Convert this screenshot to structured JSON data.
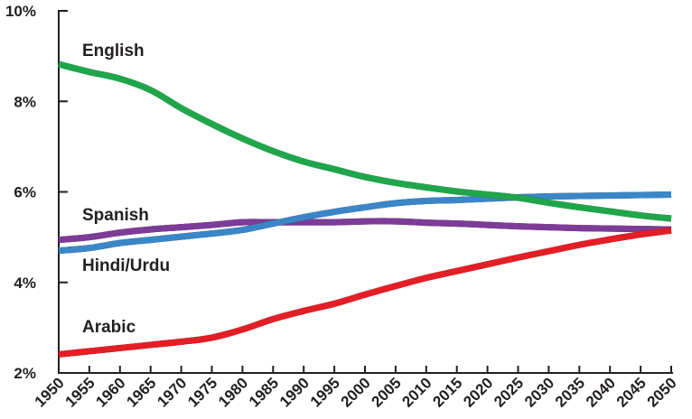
{
  "chart_data": {
    "type": "line",
    "x": [
      1950,
      1955,
      1960,
      1965,
      1970,
      1975,
      1980,
      1985,
      1990,
      1995,
      2000,
      2005,
      2010,
      2015,
      2020,
      2025,
      2030,
      2035,
      2040,
      2045,
      2050
    ],
    "x_tick_labels": [
      "1950",
      "1955",
      "1960",
      "1965",
      "1970",
      "1975",
      "1980",
      "1985",
      "1990",
      "1995",
      "2000",
      "2005",
      "2010",
      "2015",
      "2020",
      "2025",
      "2030",
      "2035",
      "2040",
      "2045",
      "2050"
    ],
    "y_ticks": [
      2,
      4,
      6,
      8,
      10
    ],
    "y_tick_labels": [
      "2%",
      "4%",
      "6%",
      "8%",
      "10%"
    ],
    "ylim": [
      2,
      10
    ],
    "xlim": [
      1950,
      2050
    ],
    "grid": false,
    "legend": "inline labels",
    "series": [
      {
        "name": "English",
        "color": "#1fa64b",
        "values": [
          8.82,
          8.65,
          8.5,
          8.25,
          7.85,
          7.5,
          7.18,
          6.9,
          6.67,
          6.5,
          6.33,
          6.2,
          6.1,
          6.01,
          5.94,
          5.87,
          5.76,
          5.66,
          5.57,
          5.48,
          5.41
        ]
      },
      {
        "name": "Spanish",
        "color": "#7d3c97",
        "values": [
          4.94,
          5.0,
          5.1,
          5.17,
          5.22,
          5.27,
          5.33,
          5.33,
          5.33,
          5.33,
          5.35,
          5.35,
          5.32,
          5.3,
          5.27,
          5.24,
          5.22,
          5.2,
          5.19,
          5.18,
          5.17
        ]
      },
      {
        "name": "Hindi/Urdu",
        "color": "#3b86c6",
        "values": [
          4.7,
          4.76,
          4.87,
          4.94,
          5.01,
          5.08,
          5.16,
          5.3,
          5.44,
          5.56,
          5.66,
          5.75,
          5.8,
          5.82,
          5.85,
          5.88,
          5.9,
          5.91,
          5.92,
          5.93,
          5.94
        ]
      },
      {
        "name": "Arabic",
        "color": "#e41e25",
        "values": [
          2.41,
          2.48,
          2.55,
          2.62,
          2.69,
          2.78,
          2.96,
          3.19,
          3.37,
          3.53,
          3.73,
          3.92,
          4.1,
          4.25,
          4.4,
          4.55,
          4.69,
          4.83,
          4.95,
          5.06,
          5.15
        ]
      }
    ]
  }
}
